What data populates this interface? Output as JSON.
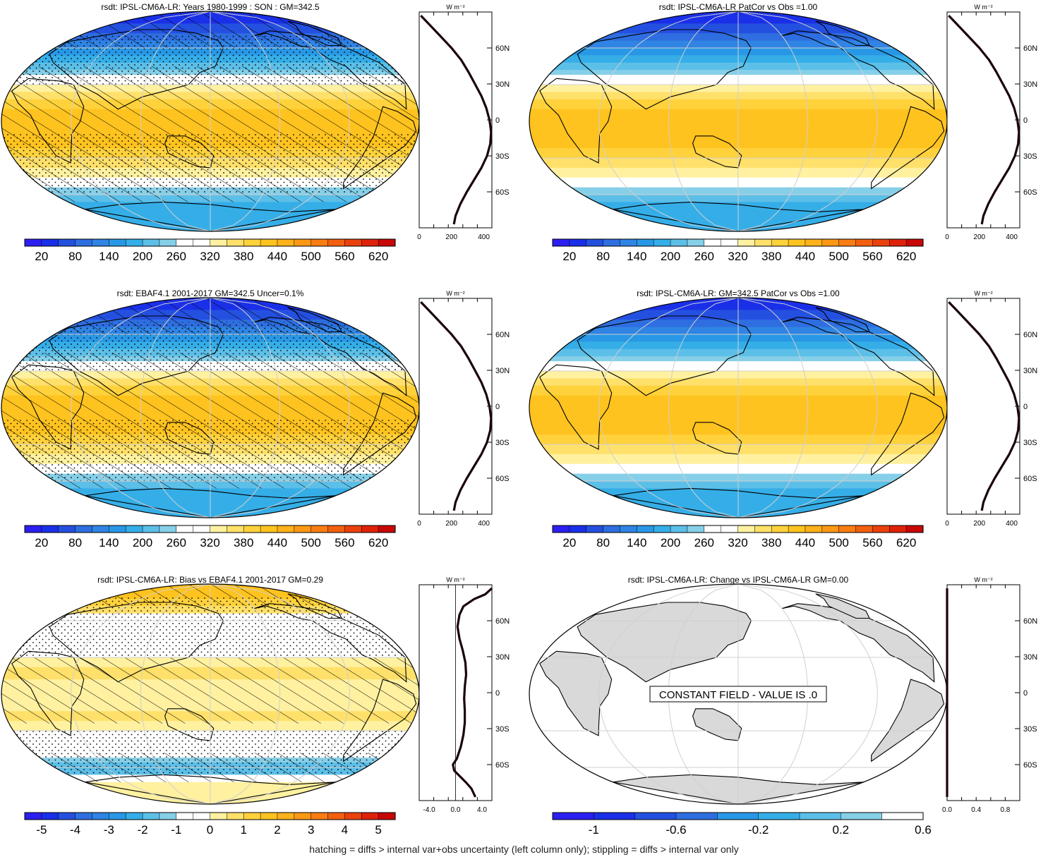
{
  "footer": "hatching = diffs > internal var+obs uncertainty (left column only); stippling = diffs > internal var only",
  "profile_unit": "W m⁻²",
  "lat_ticks": [
    "60N",
    "30N",
    "0",
    "30S",
    "60S"
  ],
  "colors": {
    "abs_scale": [
      "#2b1ff2",
      "#1a2fe8",
      "#2450e0",
      "#2e6ee0",
      "#2f84e4",
      "#2898e6",
      "#35aee8",
      "#5cbfe8",
      "#86cfe8",
      "#ffffff",
      "#ffffff",
      "#fff1a0",
      "#ffe06a",
      "#ffd23c",
      "#ffc31f",
      "#fdb11a",
      "#fb9815",
      "#f97d12",
      "#f2600f",
      "#ea410c",
      "#de2209",
      "#c80707"
    ],
    "diff_scale": [
      "#2b1ff2",
      "#1a2fe8",
      "#2450e0",
      "#2e6ee0",
      "#2f84e4",
      "#2898e6",
      "#35aee8",
      "#5cbfe8",
      "#86cfe8",
      "#ffffff",
      "#ffffff",
      "#fff1a0",
      "#ffe06a",
      "#ffd23c",
      "#ffc31f",
      "#fdb11a",
      "#fb9815",
      "#f97d12",
      "#f2600f",
      "#ea410c",
      "#de2209",
      "#c80707"
    ],
    "change_scale": [
      "#2b1ff2",
      "#1a2fe8",
      "#2450e0",
      "#2e6ee0",
      "#2898e6",
      "#35aee8",
      "#5cbfe8",
      "#86cfe8",
      "#ffffff"
    ],
    "land_gray": "#d9d9d9"
  },
  "chart_data": [
    {
      "type": "heatmap",
      "id": "p1",
      "title": "rsdt: IPSL-CM6A-LR: Years 1980-1999 : SON : GM=342.5",
      "field": "abs",
      "hatch": true,
      "stipple": true,
      "colorbar": {
        "ticks": [
          "20",
          "80",
          "140",
          "200",
          "260",
          "320",
          "380",
          "440",
          "500",
          "560",
          "620"
        ]
      },
      "profile": {
        "xlim": [
          0,
          450
        ],
        "xticks": [
          "0",
          "200",
          "400"
        ],
        "lat": [
          87,
          80,
          70,
          60,
          50,
          40,
          30,
          20,
          10,
          0,
          -10,
          -20,
          -30,
          -40,
          -50,
          -60,
          -70,
          -80,
          -87
        ],
        "values": [
          10,
          60,
          130,
          200,
          260,
          305,
          345,
          385,
          415,
          435,
          445,
          440,
          420,
          385,
          340,
          295,
          255,
          225,
          215
        ]
      }
    },
    {
      "type": "heatmap",
      "id": "p2",
      "title": "rsdt: IPSL-CM6A-LR PatCor vs Obs =1.00",
      "field": "abs",
      "hatch": false,
      "stipple": false,
      "colorbar": {
        "ticks": [
          "20",
          "80",
          "140",
          "200",
          "260",
          "320",
          "380",
          "440",
          "500",
          "560",
          "620"
        ]
      },
      "profile": {
        "xlim": [
          0,
          450
        ],
        "xticks": [
          "0",
          "200",
          "400"
        ],
        "lat": [
          87,
          80,
          70,
          60,
          50,
          40,
          30,
          20,
          10,
          0,
          -10,
          -20,
          -30,
          -40,
          -50,
          -60,
          -70,
          -80,
          -87
        ],
        "values": [
          10,
          60,
          130,
          200,
          260,
          305,
          345,
          385,
          415,
          435,
          445,
          440,
          420,
          385,
          340,
          295,
          255,
          225,
          215
        ]
      }
    },
    {
      "type": "heatmap",
      "id": "p3",
      "title": "rsdt: EBAF4.1 2001-2017 GM=342.5 Uncer=0.1%",
      "field": "abs",
      "hatch": true,
      "stipple": true,
      "colorbar": {
        "ticks": [
          "20",
          "80",
          "140",
          "200",
          "260",
          "320",
          "380",
          "440",
          "500",
          "560",
          "620"
        ]
      },
      "profile": {
        "xlim": [
          0,
          450
        ],
        "xticks": [
          "0",
          "200",
          "400"
        ],
        "lat": [
          87,
          80,
          70,
          60,
          50,
          40,
          30,
          20,
          10,
          0,
          -10,
          -20,
          -30,
          -40,
          -50,
          -60,
          -70,
          -80,
          -87
        ],
        "values": [
          10,
          60,
          130,
          200,
          260,
          305,
          345,
          385,
          415,
          435,
          445,
          440,
          420,
          385,
          340,
          295,
          255,
          225,
          215
        ]
      }
    },
    {
      "type": "heatmap",
      "id": "p4",
      "title": "rsdt: IPSL-CM6A-LR: GM=342.5 PatCor vs Obs =1.00",
      "field": "abs",
      "hatch": false,
      "stipple": false,
      "colorbar": {
        "ticks": [
          "20",
          "80",
          "140",
          "200",
          "260",
          "320",
          "380",
          "440",
          "500",
          "560",
          "620"
        ]
      },
      "profile": {
        "xlim": [
          0,
          450
        ],
        "xticks": [
          "0",
          "200",
          "400"
        ],
        "lat": [
          87,
          80,
          70,
          60,
          50,
          40,
          30,
          20,
          10,
          0,
          -10,
          -20,
          -30,
          -40,
          -50,
          -60,
          -70,
          -80,
          -87
        ],
        "values": [
          10,
          60,
          130,
          200,
          260,
          305,
          345,
          385,
          415,
          435,
          445,
          440,
          420,
          385,
          340,
          295,
          255,
          225,
          215
        ]
      }
    },
    {
      "type": "heatmap",
      "id": "p5",
      "title": "rsdt: IPSL-CM6A-LR: Bias vs EBAF4.1 2001-2017  GM=0.29",
      "field": "bias",
      "hatch": true,
      "stipple": true,
      "colorbar": {
        "ticks": [
          "-5",
          "-4",
          "-3",
          "-2",
          "-1",
          "0",
          "1",
          "2",
          "3",
          "4",
          "5"
        ]
      },
      "profile": {
        "xlim": [
          -5.5,
          5.5
        ],
        "xticks": [
          "-4.0",
          "0.0",
          "4.0"
        ],
        "zero_line": true,
        "lat": [
          87,
          82,
          78,
          72,
          65,
          55,
          45,
          35,
          25,
          15,
          5,
          -5,
          -15,
          -25,
          -35,
          -45,
          -55,
          -60,
          -65,
          -70,
          -75,
          -80,
          -87
        ],
        "values": [
          5.5,
          4.5,
          2.8,
          1.2,
          0.6,
          0.3,
          0.6,
          1.1,
          1.5,
          1.6,
          1.4,
          1.3,
          1.4,
          1.4,
          1.2,
          0.8,
          0.2,
          -0.4,
          -0.2,
          0.7,
          1.6,
          2.4,
          3.0
        ]
      }
    },
    {
      "type": "heatmap",
      "id": "p6",
      "title": "rsdt: IPSL-CM6A-LR: Change vs IPSL-CM6A-LR GM=0.00",
      "field": "change",
      "hatch": false,
      "stipple": false,
      "annotation": "CONSTANT FIELD - VALUE IS .0",
      "colorbar": {
        "ticks": [
          "-1",
          "-0.6",
          "-0.2",
          "0.2",
          "0.6"
        ]
      },
      "profile": {
        "xlim": [
          0,
          1.0
        ],
        "xticks": [
          "0.0",
          "0.4",
          "0.8"
        ],
        "lat": [
          87,
          -87
        ],
        "values": [
          0,
          0
        ]
      }
    }
  ]
}
